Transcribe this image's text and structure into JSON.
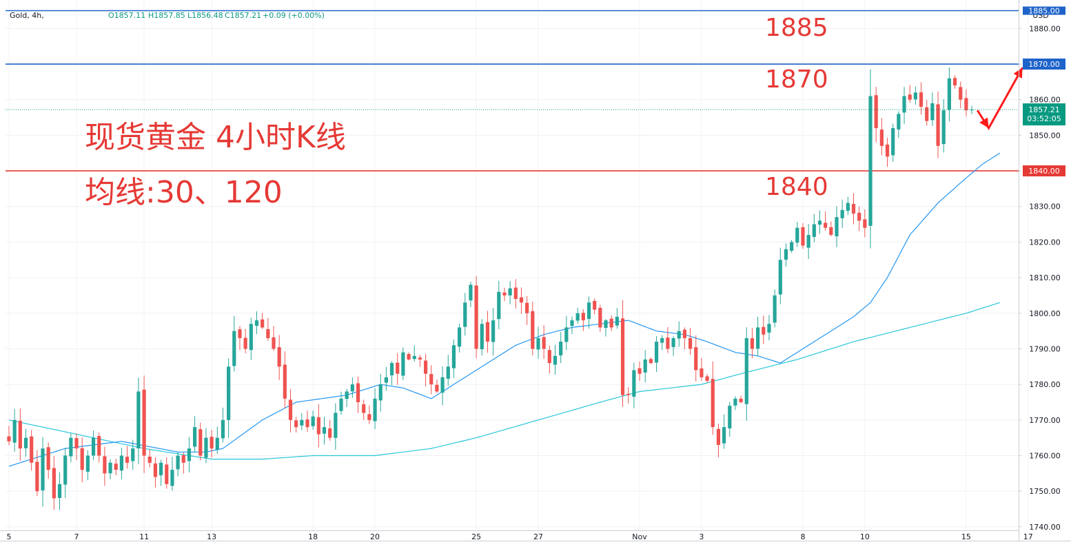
{
  "legend": {
    "symbol": "Gold, 4h,",
    "open": "O1857.11",
    "high": "H1857.85",
    "low": "L1856.48",
    "close": "C1857.21",
    "change": "+0.09 (+0.00%)"
  },
  "currency": "USD",
  "annotations": {
    "title": "现货黄金 4小时K线",
    "ma_label": "均线:30、120",
    "level_1885": "1885",
    "level_1870": "1870",
    "level_1840": "1840"
  },
  "price_badges": {
    "top": "1885.00",
    "resistance": "1870.00",
    "current": "1857.21",
    "countdown": "03:52:05",
    "support": "1840.00"
  },
  "colors": {
    "up": "#26a69a",
    "down": "#ef5350",
    "line_blue": "#1e63c9",
    "line_red": "#e53935",
    "ma30": "#2196f3",
    "ma120": "#26c6da",
    "current": "#089981"
  },
  "chart_data": {
    "type": "candlestick",
    "y_axis": {
      "range": [
        1739,
        1888
      ],
      "ticks": [
        "1740.00",
        "1750.00",
        "1760.00",
        "1770.00",
        "1780.00",
        "1790.00",
        "1800.00",
        "1810.00",
        "1820.00",
        "1830.00",
        "1840.00",
        "1850.00",
        "1860.00",
        "1870.00",
        "1880.00"
      ]
    },
    "x_axis": {
      "ticks": [
        {
          "label": "5",
          "idx": 0
        },
        {
          "label": "7",
          "idx": 12
        },
        {
          "label": "11",
          "idx": 24
        },
        {
          "label": "13",
          "idx": 36
        },
        {
          "label": "18",
          "idx": 54
        },
        {
          "label": "20",
          "idx": 65
        },
        {
          "label": "25",
          "idx": 83
        },
        {
          "label": "27",
          "idx": 94
        },
        {
          "label": "Nov",
          "idx": 112
        },
        {
          "label": "3",
          "idx": 123
        },
        {
          "label": "8",
          "idx": 141
        },
        {
          "label": "10",
          "idx": 152
        },
        {
          "label": "15",
          "idx": 170
        },
        {
          "label": "17",
          "idx": 181
        }
      ]
    },
    "horizontal_levels": [
      {
        "value": 1885,
        "color": "line_blue"
      },
      {
        "value": 1870,
        "color": "line_blue"
      },
      {
        "value": 1840,
        "color": "line_red"
      }
    ],
    "current_price": 1857.21,
    "forecast_path": [
      [
        172,
        1857
      ],
      [
        174,
        1852
      ],
      [
        180,
        1869
      ]
    ],
    "anchors": [
      [
        0,
        1764
      ],
      [
        1,
        1770
      ],
      [
        2,
        1762
      ],
      [
        3,
        1765
      ],
      [
        4,
        1758
      ],
      [
        5,
        1750
      ],
      [
        6,
        1762
      ],
      [
        7,
        1756
      ],
      [
        8,
        1748
      ],
      [
        9,
        1752
      ],
      [
        10,
        1760
      ],
      [
        11,
        1765
      ],
      [
        12,
        1762
      ],
      [
        13,
        1756
      ],
      [
        14,
        1760
      ],
      [
        15,
        1765
      ],
      [
        16,
        1760
      ],
      [
        17,
        1755
      ],
      [
        18,
        1758
      ],
      [
        19,
        1756
      ],
      [
        20,
        1760
      ],
      [
        21,
        1758
      ],
      [
        22,
        1762
      ],
      [
        23,
        1778
      ],
      [
        24,
        1760
      ],
      [
        25,
        1758
      ],
      [
        26,
        1754
      ],
      [
        27,
        1758
      ],
      [
        28,
        1752
      ],
      [
        29,
        1756
      ],
      [
        30,
        1760
      ],
      [
        31,
        1758
      ],
      [
        32,
        1762
      ],
      [
        33,
        1768
      ],
      [
        34,
        1760
      ],
      [
        35,
        1765
      ],
      [
        36,
        1762
      ],
      [
        37,
        1765
      ],
      [
        38,
        1770
      ],
      [
        39,
        1785
      ],
      [
        40,
        1795
      ],
      [
        41,
        1793
      ],
      [
        42,
        1790
      ],
      [
        43,
        1797
      ],
      [
        44,
        1798
      ],
      [
        45,
        1796
      ],
      [
        46,
        1793
      ],
      [
        47,
        1790
      ],
      [
        48,
        1785
      ],
      [
        49,
        1776
      ],
      [
        50,
        1770
      ],
      [
        51,
        1768
      ],
      [
        52,
        1770
      ],
      [
        53,
        1768
      ],
      [
        54,
        1771
      ],
      [
        55,
        1766
      ],
      [
        56,
        1768
      ],
      [
        57,
        1765
      ],
      [
        58,
        1772
      ],
      [
        59,
        1776
      ],
      [
        60,
        1778
      ],
      [
        61,
        1780
      ],
      [
        62,
        1775
      ],
      [
        63,
        1772
      ],
      [
        64,
        1770
      ],
      [
        65,
        1776
      ],
      [
        66,
        1780
      ],
      [
        67,
        1782
      ],
      [
        68,
        1786
      ],
      [
        69,
        1783
      ],
      [
        70,
        1789
      ],
      [
        71,
        1787
      ],
      [
        72,
        1788
      ],
      [
        73,
        1787
      ],
      [
        74,
        1783
      ],
      [
        75,
        1780
      ],
      [
        76,
        1778
      ],
      [
        77,
        1782
      ],
      [
        78,
        1785
      ],
      [
        79,
        1791
      ],
      [
        80,
        1796
      ],
      [
        81,
        1803
      ],
      [
        82,
        1808
      ],
      [
        83,
        1790
      ],
      [
        84,
        1797
      ],
      [
        85,
        1792
      ],
      [
        86,
        1798
      ],
      [
        87,
        1806
      ],
      [
        88,
        1805
      ],
      [
        89,
        1807
      ],
      [
        90,
        1804
      ],
      [
        91,
        1803
      ],
      [
        92,
        1800
      ],
      [
        93,
        1790
      ],
      [
        94,
        1793
      ],
      [
        95,
        1790
      ],
      [
        96,
        1786
      ],
      [
        97,
        1788
      ],
      [
        98,
        1792
      ],
      [
        99,
        1796
      ],
      [
        100,
        1798
      ],
      [
        101,
        1800
      ],
      [
        102,
        1798
      ],
      [
        103,
        1803
      ],
      [
        104,
        1801
      ],
      [
        105,
        1796
      ],
      [
        106,
        1798
      ],
      [
        107,
        1796
      ],
      [
        108,
        1799
      ],
      [
        109,
        1777
      ],
      [
        110,
        1777
      ],
      [
        111,
        1784
      ],
      [
        112,
        1783
      ],
      [
        113,
        1787
      ],
      [
        114,
        1786
      ],
      [
        115,
        1792
      ],
      [
        116,
        1793
      ],
      [
        117,
        1790
      ],
      [
        118,
        1793
      ],
      [
        119,
        1795
      ],
      [
        120,
        1793
      ],
      [
        121,
        1790
      ],
      [
        122,
        1784
      ],
      [
        123,
        1782
      ],
      [
        124,
        1781
      ],
      [
        125,
        1768
      ],
      [
        126,
        1763
      ],
      [
        127,
        1768
      ],
      [
        128,
        1774
      ],
      [
        129,
        1776
      ],
      [
        130,
        1775
      ],
      [
        131,
        1793
      ],
      [
        132,
        1790
      ],
      [
        133,
        1796
      ],
      [
        134,
        1794
      ],
      [
        135,
        1797
      ],
      [
        136,
        1805
      ],
      [
        137,
        1815
      ],
      [
        138,
        1818
      ],
      [
        139,
        1820
      ],
      [
        140,
        1824
      ],
      [
        141,
        1819
      ],
      [
        142,
        1822
      ],
      [
        143,
        1825
      ],
      [
        144,
        1826
      ],
      [
        145,
        1824
      ],
      [
        146,
        1822
      ],
      [
        147,
        1827
      ],
      [
        148,
        1829
      ],
      [
        149,
        1831
      ],
      [
        150,
        1828
      ],
      [
        151,
        1826
      ],
      [
        152,
        1824
      ],
      [
        153,
        1861
      ],
      [
        154,
        1852
      ],
      [
        155,
        1847
      ],
      [
        156,
        1844
      ],
      [
        157,
        1852
      ],
      [
        158,
        1856
      ],
      [
        159,
        1861
      ],
      [
        160,
        1860
      ],
      [
        161,
        1862
      ],
      [
        162,
        1858
      ],
      [
        163,
        1854
      ],
      [
        164,
        1859
      ],
      [
        165,
        1847
      ],
      [
        166,
        1857
      ],
      [
        167,
        1866
      ],
      [
        168,
        1864
      ],
      [
        169,
        1860
      ],
      [
        170,
        1857
      ],
      [
        171,
        1857.21
      ]
    ],
    "ma30_anchors": [
      [
        0,
        1757
      ],
      [
        10,
        1762
      ],
      [
        20,
        1764
      ],
      [
        30,
        1761
      ],
      [
        35,
        1761
      ],
      [
        38,
        1762
      ],
      [
        45,
        1770
      ],
      [
        51,
        1775
      ],
      [
        60,
        1777
      ],
      [
        66,
        1780
      ],
      [
        70,
        1779
      ],
      [
        75,
        1776
      ],
      [
        80,
        1781
      ],
      [
        85,
        1786
      ],
      [
        90,
        1791
      ],
      [
        95,
        1794
      ],
      [
        100,
        1796
      ],
      [
        105,
        1797
      ],
      [
        110,
        1798
      ],
      [
        115,
        1795
      ],
      [
        120,
        1794
      ],
      [
        124,
        1792
      ],
      [
        129,
        1789
      ],
      [
        133,
        1788
      ],
      [
        137,
        1786
      ],
      [
        140,
        1789
      ],
      [
        145,
        1794
      ],
      [
        150,
        1799
      ],
      [
        153,
        1803
      ],
      [
        156,
        1810
      ],
      [
        160,
        1822
      ],
      [
        165,
        1831
      ],
      [
        170,
        1838
      ],
      [
        173,
        1842
      ],
      [
        176,
        1845
      ]
    ],
    "ma120_anchors": [
      [
        0,
        1770
      ],
      [
        12,
        1766
      ],
      [
        24,
        1762
      ],
      [
        36,
        1759
      ],
      [
        45,
        1759
      ],
      [
        54,
        1760
      ],
      [
        65,
        1760
      ],
      [
        75,
        1762
      ],
      [
        83,
        1765
      ],
      [
        94,
        1770
      ],
      [
        105,
        1775
      ],
      [
        112,
        1778
      ],
      [
        123,
        1780
      ],
      [
        130,
        1783
      ],
      [
        140,
        1787
      ],
      [
        150,
        1792
      ],
      [
        160,
        1796
      ],
      [
        170,
        1800
      ],
      [
        176,
        1803
      ]
    ]
  }
}
